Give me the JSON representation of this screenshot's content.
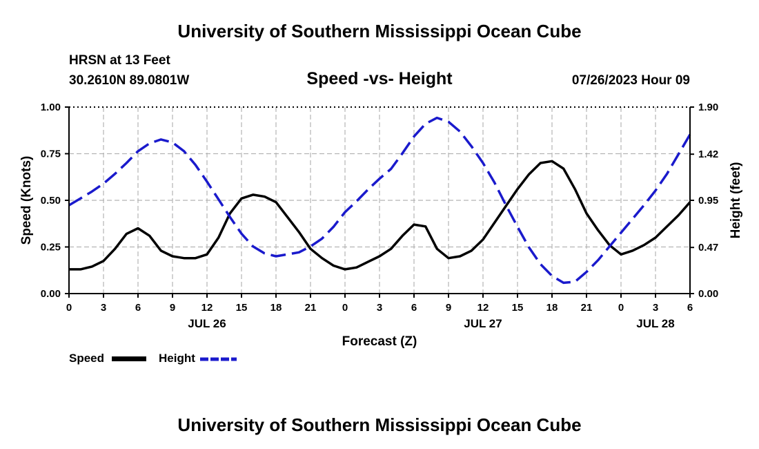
{
  "header": {
    "title": "University of Southern Mississippi Ocean Cube",
    "station": "HRSN at 13 Feet",
    "coords": "30.2610N  89.0801W",
    "datetime": "07/26/2023 Hour 09"
  },
  "footer": {
    "title": "University of Southern Mississippi Ocean Cube"
  },
  "legend": {
    "speed_label": "Speed",
    "height_label": "Height"
  },
  "colors": {
    "speed": "#000000",
    "height": "#1a1acc",
    "grid": "#b4b4b4"
  },
  "chart_data": {
    "type": "line",
    "title": "Speed -vs- Height",
    "xlabel": "Forecast (Z)",
    "ylabel": "Speed (Knots)",
    "y2label": "Height (feet)",
    "xlim": [
      0,
      54
    ],
    "ylim": [
      0,
      1.0
    ],
    "y2lim": [
      0,
      1.9
    ],
    "x_ticks": [
      0,
      3,
      6,
      9,
      12,
      15,
      18,
      21,
      24,
      27,
      30,
      33,
      36,
      39,
      42,
      45,
      48,
      51,
      54
    ],
    "x_tick_labels": [
      "0",
      "3",
      "6",
      "9",
      "12",
      "15",
      "18",
      "21",
      "0",
      "3",
      "6",
      "9",
      "12",
      "15",
      "18",
      "21",
      "0",
      "3",
      "6"
    ],
    "y_ticks": [
      0,
      0.25,
      0.5,
      0.75,
      1.0
    ],
    "y_tick_labels": [
      "0.00",
      "0.25",
      "0.50",
      "0.75",
      "1.00"
    ],
    "y2_ticks": [
      0,
      0.47,
      0.95,
      1.42,
      1.9
    ],
    "y2_tick_labels": [
      "0.00",
      "0.47",
      "0.95",
      "1.42",
      "1.90"
    ],
    "date_labels": [
      {
        "x": 12,
        "label": "JUL 26"
      },
      {
        "x": 36,
        "label": "JUL 27"
      },
      {
        "x": 51,
        "label": "JUL 28"
      }
    ],
    "series": [
      {
        "name": "Speed",
        "axis": "left",
        "style": "solid",
        "x": [
          0,
          1,
          2,
          3,
          4,
          5,
          6,
          7,
          8,
          9,
          10,
          11,
          12,
          13,
          14,
          15,
          16,
          17,
          18,
          19,
          20,
          21,
          22,
          23,
          24,
          25,
          26,
          27,
          28,
          29,
          30,
          31,
          32,
          33,
          34,
          35,
          36,
          37,
          38,
          39,
          40,
          41,
          42,
          43,
          44,
          45,
          46,
          47,
          48,
          49,
          50,
          51,
          52,
          53,
          54
        ],
        "values": [
          0.13,
          0.13,
          0.145,
          0.175,
          0.24,
          0.32,
          0.35,
          0.31,
          0.23,
          0.2,
          0.19,
          0.19,
          0.21,
          0.3,
          0.43,
          0.51,
          0.53,
          0.52,
          0.49,
          0.41,
          0.33,
          0.24,
          0.19,
          0.15,
          0.13,
          0.14,
          0.17,
          0.2,
          0.24,
          0.31,
          0.37,
          0.36,
          0.24,
          0.19,
          0.2,
          0.23,
          0.29,
          0.38,
          0.47,
          0.56,
          0.64,
          0.7,
          0.71,
          0.67,
          0.56,
          0.43,
          0.34,
          0.26,
          0.21,
          0.23,
          0.26,
          0.3,
          0.36,
          0.42,
          0.49
        ]
      },
      {
        "name": "Height",
        "axis": "right",
        "style": "dashed",
        "x": [
          0,
          1,
          2,
          3,
          4,
          5,
          6,
          7,
          8,
          9,
          10,
          11,
          12,
          13,
          14,
          15,
          16,
          17,
          18,
          19,
          20,
          21,
          22,
          23,
          24,
          25,
          26,
          27,
          28,
          29,
          30,
          31,
          32,
          33,
          34,
          35,
          36,
          37,
          38,
          39,
          40,
          41,
          42,
          43,
          44,
          45,
          46,
          47,
          48,
          49,
          50,
          51,
          52,
          53,
          54
        ],
        "values": [
          0.9,
          0.97,
          1.04,
          1.12,
          1.22,
          1.33,
          1.45,
          1.53,
          1.57,
          1.54,
          1.45,
          1.31,
          1.14,
          0.96,
          0.78,
          0.61,
          0.48,
          0.41,
          0.38,
          0.4,
          0.42,
          0.48,
          0.56,
          0.68,
          0.83,
          0.94,
          1.06,
          1.17,
          1.27,
          1.43,
          1.6,
          1.73,
          1.79,
          1.75,
          1.65,
          1.5,
          1.33,
          1.13,
          0.9,
          0.68,
          0.47,
          0.3,
          0.18,
          0.11,
          0.12,
          0.22,
          0.34,
          0.48,
          0.62,
          0.76,
          0.9,
          1.05,
          1.22,
          1.42,
          1.62
        ]
      }
    ]
  }
}
